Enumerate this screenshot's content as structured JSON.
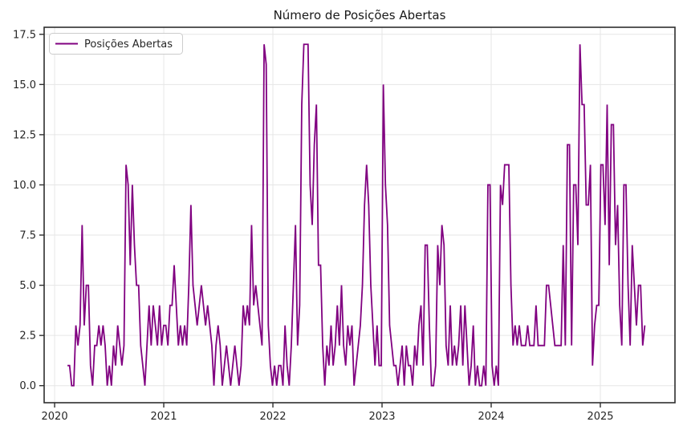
{
  "chart_data": {
    "type": "line",
    "title": "Número de Posições Abertas",
    "legend": {
      "label": "Posições Abertas",
      "position": "upper-left"
    },
    "x_ticks": [
      "2020",
      "2021",
      "2022",
      "2023",
      "2024",
      "2025"
    ],
    "x_tick_values": [
      2020,
      2021,
      2022,
      2023,
      2024,
      2025
    ],
    "y_ticks": [
      "0.0",
      "2.5",
      "5.0",
      "7.5",
      "10.0",
      "12.5",
      "15.0",
      "17.5"
    ],
    "y_tick_values": [
      0,
      2.5,
      5,
      7.5,
      10,
      12.5,
      15,
      17.5
    ],
    "xlim": [
      2019.904,
      2025.684
    ],
    "ylim": [
      -0.85,
      17.85
    ],
    "grid": true,
    "colors": {
      "line": "#800080",
      "grid": "#e6e6e6",
      "spine": "#2e2e2e",
      "text": "#262626",
      "background": "#ffffff"
    },
    "series": [
      {
        "name": "Posições Abertas",
        "color": "#800080",
        "start_year_fraction": 2020.118,
        "step_years": 0.019165,
        "values": [
          1,
          1,
          0,
          0,
          3,
          2,
          3,
          8,
          3,
          5,
          5,
          1,
          0,
          2,
          2,
          3,
          2,
          3,
          2,
          0,
          1,
          0,
          2,
          1,
          3,
          2,
          1,
          2,
          11,
          10,
          6,
          10,
          7,
          5,
          5,
          2,
          1,
          0,
          2,
          4,
          2,
          4,
          3,
          2,
          4,
          2,
          3,
          3,
          2,
          4,
          4,
          6,
          4,
          2,
          3,
          2,
          3,
          2,
          5,
          9,
          5,
          4,
          3,
          4,
          5,
          4,
          3,
          4,
          3,
          2,
          0,
          2,
          3,
          2,
          0,
          1,
          2,
          1,
          0,
          1,
          2,
          1,
          0,
          1,
          4,
          3,
          4,
          3,
          8,
          4,
          5,
          4,
          3,
          2,
          17,
          16,
          3,
          1,
          0,
          1,
          0,
          1,
          1,
          0,
          3,
          1,
          0,
          2,
          5,
          8,
          2,
          4,
          14,
          17,
          17,
          17,
          10,
          8,
          12,
          14,
          6,
          6,
          2,
          0,
          2,
          1,
          3,
          1,
          2,
          4,
          2,
          5,
          2,
          1,
          3,
          2,
          3,
          0,
          1,
          2,
          3,
          5,
          9,
          11,
          9,
          5,
          3,
          1,
          3,
          1,
          1,
          15,
          10,
          8,
          3,
          2,
          1,
          1,
          0,
          1,
          2,
          0,
          2,
          1,
          1,
          0,
          2,
          1,
          3,
          4,
          1,
          7,
          7,
          3,
          0,
          0,
          1,
          7,
          5,
          8,
          7,
          2,
          1,
          4,
          1,
          2,
          1,
          2,
          4,
          1,
          4,
          2,
          0,
          1,
          3,
          0,
          1,
          0,
          0,
          1,
          0,
          10,
          10,
          1,
          0,
          1,
          0,
          10,
          9,
          11,
          11,
          11,
          5,
          2,
          3,
          2,
          3,
          2,
          2,
          2,
          3,
          2,
          2,
          2,
          4,
          2,
          2,
          2,
          2,
          5,
          5,
          4,
          3,
          2,
          2,
          2,
          2,
          7,
          2,
          12,
          12,
          2,
          10,
          10,
          7,
          17,
          14,
          14,
          9,
          9,
          11,
          1,
          3,
          4,
          4,
          11,
          11,
          8,
          14,
          6,
          13,
          13,
          7,
          9,
          4,
          2,
          10,
          10,
          5,
          2,
          7,
          5,
          3,
          5,
          5,
          2,
          3
        ]
      }
    ]
  }
}
